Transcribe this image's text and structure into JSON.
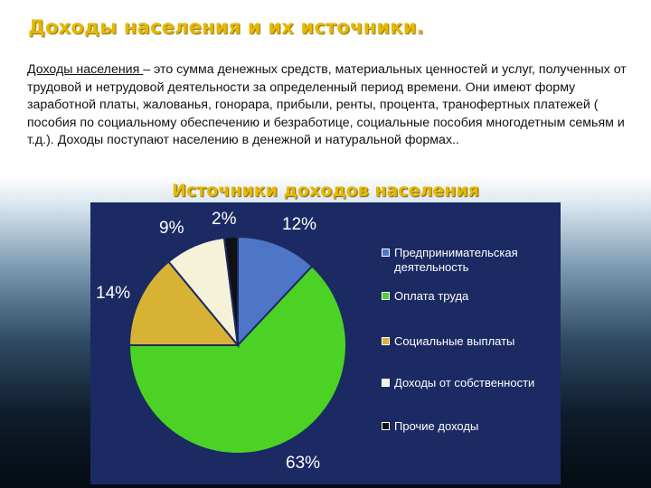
{
  "header": {
    "title": "Доходы населения и их источники."
  },
  "definition": {
    "term": "Доходы населения ",
    "text": "– это сумма денежных средств, материальных ценностей и услуг, полученных от трудовой и нетрудовой деятельности за определенный период времени. Они имеют форму заработной платы, жалованья, гонорара, прибыли, ренты, процента, транофертных платежей ( пособия по социальному обеспечению и безработице, социальные пособия многодетным семьям и т.д.). Доходы поступают населению в денежной и натуральной формах.."
  },
  "chart_data": {
    "type": "pie",
    "title": "Источники доходов населения",
    "legend_position": "right",
    "slices": [
      {
        "label": "Предпринимательская деятельность",
        "value": 12,
        "value_label": "12%",
        "color": "#4d76c6"
      },
      {
        "label": "Оплата труда",
        "value": 63,
        "value_label": "63%",
        "color": "#4bd224"
      },
      {
        "label": "Социальные выплаты",
        "value": 14,
        "value_label": "14%",
        "color": "#d8b234"
      },
      {
        "label": "Доходы от собственности",
        "value": 9,
        "value_label": "9%",
        "color": "#f5f2d9"
      },
      {
        "label": "Прочие доходы",
        "value": 2,
        "value_label": "2%",
        "color": "#101010"
      }
    ]
  }
}
